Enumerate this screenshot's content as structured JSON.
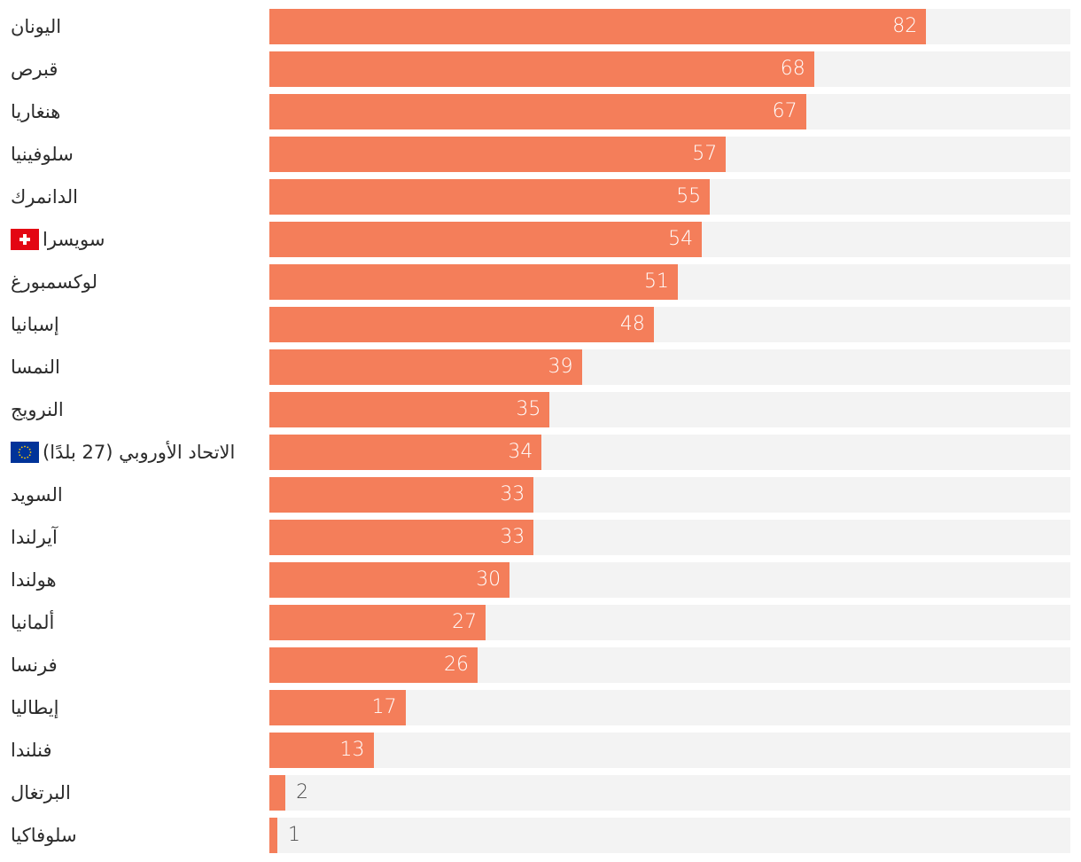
{
  "chart_data": {
    "type": "bar",
    "orientation": "horizontal",
    "title": "",
    "xlabel": "",
    "ylabel": "",
    "xlim": [
      0,
      100
    ],
    "grid": false,
    "legend": "none",
    "categories": [
      "اليونان",
      "قبرص",
      "هنغاريا",
      "سلوفينيا",
      "الدانمرك",
      "سويسرا",
      "لوكسمبورغ",
      "إسبانيا",
      "النمسا",
      "النرويج",
      "الاتحاد الأوروبي (27 بلدًا)",
      "السويد",
      "آيرلندا",
      "هولندا",
      "ألمانيا",
      "فرنسا",
      "إيطاليا",
      "فنلندا",
      "البرتغال",
      "سلوفاكيا"
    ],
    "values": [
      82,
      68,
      67,
      57,
      55,
      54,
      51,
      48,
      39,
      35,
      34,
      33,
      33,
      30,
      27,
      26,
      17,
      13,
      2,
      1
    ],
    "flags": [
      null,
      null,
      null,
      null,
      null,
      "switzerland-flag-icon",
      null,
      null,
      null,
      null,
      "eu-flag-icon",
      null,
      null,
      null,
      null,
      null,
      null,
      null,
      null,
      null
    ],
    "colors": {
      "bar": "#f47e5a",
      "track": "#f3f3f3",
      "label": "#2b2b2b",
      "value_inside": "#ffffff",
      "value_outside": "#4a4a4a",
      "swiss_red": "#e30613",
      "eu_blue": "#003399",
      "eu_gold": "#ffcc00"
    }
  }
}
